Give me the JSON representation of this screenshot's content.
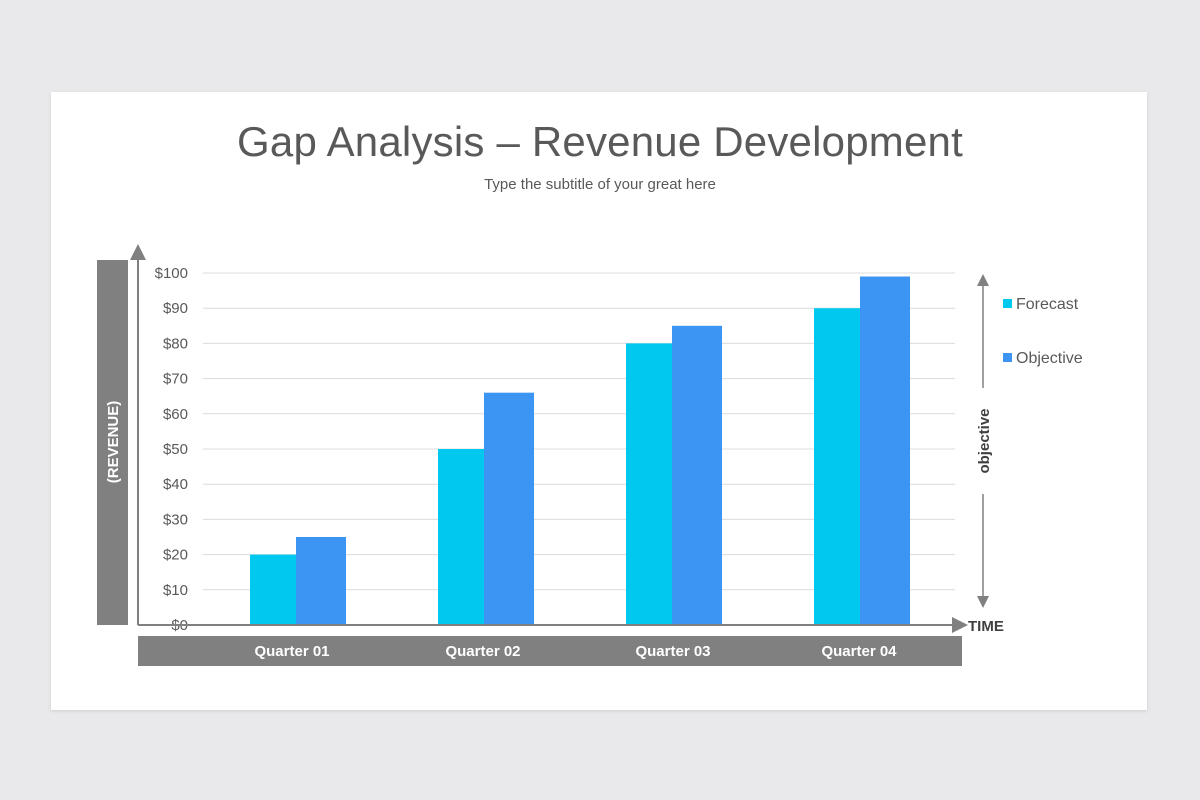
{
  "page": {
    "title": "Gap Analysis – Revenue Development",
    "subtitle": "Type the subtitle of your great here"
  },
  "chart_data": {
    "type": "bar",
    "title": "Gap Analysis – Revenue Development",
    "subtitle": "Type the subtitle of your great here",
    "ylabel": "(REVENUE)",
    "xlabel": "TIME",
    "side_label": "objective",
    "categories": [
      "Quarter 01",
      "Quarter 02",
      "Quarter 03",
      "Quarter 04"
    ],
    "series": [
      {
        "name": "Forecast",
        "values": [
          20,
          50,
          80,
          90
        ],
        "color": "#00c8ee"
      },
      {
        "name": "Objective",
        "values": [
          25,
          66,
          85,
          99
        ],
        "color": "#3d95f3"
      }
    ],
    "ylim": [
      0,
      100
    ],
    "yticks": [
      0,
      10,
      20,
      30,
      40,
      50,
      60,
      70,
      80,
      90,
      100
    ],
    "ytick_labels": [
      "$0",
      "$10",
      "$20",
      "$30",
      "$40",
      "$50",
      "$60",
      "$70",
      "$80",
      "$90",
      "$100"
    ],
    "grid": true,
    "legend": "right",
    "colors": {
      "band": "#808080",
      "grid": "#dcdcdc",
      "axis": "#808080",
      "text": "#595959"
    }
  }
}
